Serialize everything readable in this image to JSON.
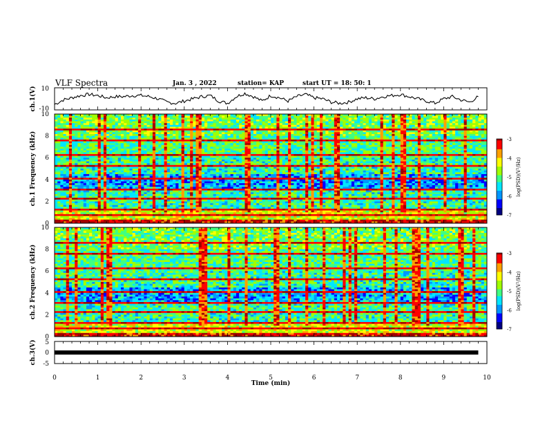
{
  "header": {
    "title": "VLF Spectra",
    "date": "Jan. 3 , 2022",
    "station": "station= KAP",
    "start": "start UT = 18: 50: 1"
  },
  "chart_data": [
    {
      "type": "line",
      "ylabel": "ch.1(V)",
      "ylim": [
        -10,
        10
      ],
      "yticks": [
        "10",
        "-10"
      ],
      "xlim": [
        0,
        10
      ],
      "series": [
        {
          "x": [
            0,
            0.2,
            0.4,
            0.6,
            0.8,
            1.0,
            1.2,
            1.4,
            1.6,
            1.8,
            2.0,
            2.2,
            2.4,
            2.6,
            2.8,
            3.0,
            3.2,
            3.4,
            3.6,
            3.8,
            4.0,
            4.2,
            4.4,
            4.6,
            4.8,
            5.0,
            5.2,
            5.4,
            5.6,
            5.8,
            6.0,
            6.2,
            6.4,
            6.6,
            6.8,
            7.0,
            7.2,
            7.4,
            7.6,
            7.8,
            8.0,
            8.2,
            8.4,
            8.6,
            8.8,
            9.0,
            9.2,
            9.4,
            9.6,
            9.8
          ],
          "values": [
            -5,
            -1,
            1,
            3,
            4,
            3,
            1,
            2,
            2,
            3,
            3,
            2,
            0,
            -3,
            -4,
            -2,
            0,
            2,
            3,
            -2,
            -4,
            2,
            5,
            2,
            -2,
            3,
            1,
            -2,
            2,
            4,
            1,
            0,
            -3,
            -4,
            -3,
            0,
            1,
            0,
            2,
            3,
            4,
            2,
            0,
            -2,
            -4,
            0,
            2,
            -1,
            -3,
            2
          ]
        }
      ]
    },
    {
      "type": "heatmap",
      "ylabel": "ch.1 Frequency (kHz)",
      "xlim": [
        0,
        10
      ],
      "ylim": [
        0,
        10
      ],
      "yticks": [
        "0",
        "2",
        "4",
        "6",
        "8",
        "10"
      ],
      "colorbar": {
        "label": "log(PSD)(V²/Hz)",
        "ticks": [
          "-3",
          "-4",
          "-5",
          "-6",
          "-7"
        ],
        "range": [
          -7,
          -3
        ]
      }
    },
    {
      "type": "heatmap",
      "ylabel": "ch.2 Frequency (kHz)",
      "xlim": [
        0,
        10
      ],
      "ylim": [
        0,
        10
      ],
      "yticks": [
        "0",
        "2",
        "4",
        "6",
        "8",
        "10"
      ],
      "colorbar": {
        "label": "log(PSD)(V²/Hz)",
        "ticks": [
          "-3",
          "-4",
          "-5",
          "-6",
          "-7"
        ],
        "range": [
          -7,
          -3
        ]
      }
    },
    {
      "type": "line",
      "ylabel": "ch.3(V)",
      "ylim": [
        -5,
        5
      ],
      "yticks": [
        "5",
        "0",
        "-5"
      ],
      "xlim": [
        0,
        10
      ],
      "xlabel": "Time (min)",
      "xticks": [
        "0",
        "1",
        "2",
        "3",
        "4",
        "5",
        "6",
        "7",
        "8",
        "9",
        "10"
      ],
      "series": [
        {
          "x": [
            0,
            9.8
          ],
          "values": [
            0,
            0
          ]
        }
      ]
    }
  ],
  "colors": {
    "scale": [
      "#00007f",
      "#0000ff",
      "#0096ff",
      "#00e6ff",
      "#40ff80",
      "#a0ff00",
      "#ffff00",
      "#ffa000",
      "#ff0000",
      "#a00000",
      "#ffffff"
    ]
  }
}
